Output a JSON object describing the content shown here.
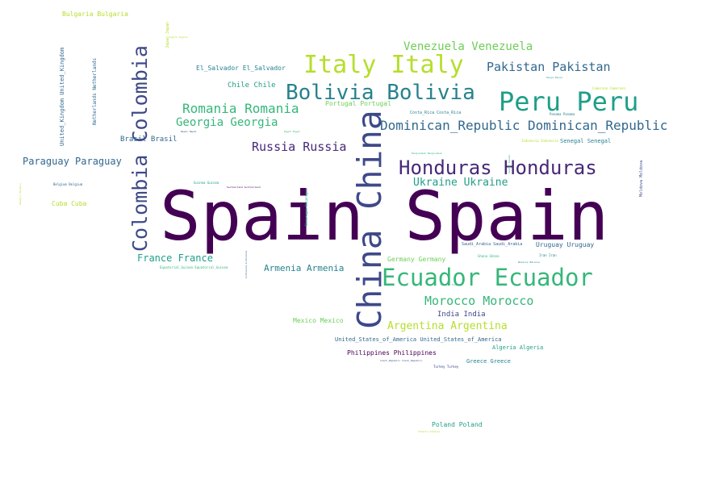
{
  "colors": {
    "background": "#ffffff",
    "dark_purple": "#440154",
    "purple": "#482878",
    "indigo": "#3e4989",
    "blue": "#31688e",
    "teal": "#26828e",
    "green_teal": "#1f9e89",
    "green": "#35b779",
    "light_green": "#6ece58",
    "lime": "#b5de2b",
    "yellow": "#fde725"
  },
  "words": [
    {
      "text": "Spain Spain",
      "color": "#440154"
    },
    {
      "text": "China China",
      "color": "#3e4989"
    },
    {
      "text": "Colombia Colombia",
      "color": "#3e4989"
    },
    {
      "text": "Ecuador Ecuador",
      "color": "#35b779"
    },
    {
      "text": "Italy Italy",
      "color": "#b5de2b"
    },
    {
      "text": "Peru Peru",
      "color": "#1f9e89"
    },
    {
      "text": "Bolivia Bolivia",
      "color": "#26828e"
    },
    {
      "text": "Honduras Honduras",
      "color": "#482878"
    },
    {
      "text": "Dominican_Republic Dominican_Republic",
      "color": "#31688e"
    },
    {
      "text": "Venezuela Venezuela",
      "color": "#6ece58"
    },
    {
      "text": "Pakistan Pakistan",
      "color": "#31688e"
    },
    {
      "text": "Romania Romania",
      "color": "#35b779"
    },
    {
      "text": "Georgia Georgia",
      "color": "#35b779"
    },
    {
      "text": "Russia Russia",
      "color": "#482878"
    },
    {
      "text": "Morocco Morocco",
      "color": "#35b779"
    },
    {
      "text": "Argentina Argentina",
      "color": "#b5de2b"
    },
    {
      "text": "Ukraine Ukraine",
      "color": "#1f9e89"
    },
    {
      "text": "Paraguay Paraguay",
      "color": "#31688e"
    },
    {
      "text": "France France",
      "color": "#1f9e89"
    },
    {
      "text": "Armenia Armenia",
      "color": "#26828e"
    },
    {
      "text": "El_Salvador El_Salvador",
      "color": "#26828e"
    },
    {
      "text": "Chile Chile",
      "color": "#1f9e89"
    },
    {
      "text": "Portugal Portugal",
      "color": "#6ece58"
    },
    {
      "text": "Brasil Brasil",
      "color": "#31688e"
    },
    {
      "text": "Bulgaria Bulgaria",
      "color": "#b5de2b"
    },
    {
      "text": "Cuba Cuba",
      "color": "#b5de2b"
    },
    {
      "text": "Germany Germany",
      "color": "#6ece58"
    },
    {
      "text": "Uruguay Uruguay",
      "color": "#31688e"
    },
    {
      "text": "India India",
      "color": "#3e4989"
    },
    {
      "text": "Mexico Mexico",
      "color": "#6ece58"
    },
    {
      "text": "United_States_of_America United_States_of_America",
      "color": "#31688e"
    },
    {
      "text": "Philippines Philippines",
      "color": "#440154"
    },
    {
      "text": "Algeria Algeria",
      "color": "#1f9e89"
    },
    {
      "text": "Greece Greece",
      "color": "#26828e"
    },
    {
      "text": "Poland Poland",
      "color": "#1f9e89"
    },
    {
      "text": "Senegal Senegal",
      "color": "#26828e"
    },
    {
      "text": "Costa_Rica Costa_Rica",
      "color": "#26828e"
    },
    {
      "text": "Saudi_Arabia Saudi_Arabia",
      "color": "#31688e"
    },
    {
      "text": "United_Kingdom United_Kingdom",
      "color": "#31688e"
    },
    {
      "text": "Netherlands Netherlands",
      "color": "#31688e"
    },
    {
      "text": "Japan Japan",
      "color": "#b5de2b"
    },
    {
      "text": "Moldova Moldova",
      "color": "#3e4989"
    },
    {
      "text": "Nicaragua Nicaragua",
      "color": "#1f9e89"
    },
    {
      "text": "Lithuania Lithuania",
      "color": "#31688e"
    },
    {
      "text": "Hungary Hungary",
      "color": "#b5de2b"
    },
    {
      "text": "Equatorial_Guinea Equatorial_Guinea",
      "color": "#35b779"
    },
    {
      "text": "Belgium Belgium",
      "color": "#31688e"
    },
    {
      "text": "Guinea Guinea",
      "color": "#1f9e89"
    },
    {
      "text": "Switzerland Switzerland",
      "color": "#440154"
    },
    {
      "text": "Nepal Nepal",
      "color": "#31688e"
    },
    {
      "text": "Egypt Egypt",
      "color": "#35b779"
    },
    {
      "text": "Bangladesh Bangladesh",
      "color": "#35b779"
    },
    {
      "text": "Indonesia Indonesia",
      "color": "#b5de2b"
    },
    {
      "text": "Panama Panama",
      "color": "#26828e"
    },
    {
      "text": "Cameroon Cameroon",
      "color": "#b5de2b"
    },
    {
      "text": "Iran Iran",
      "color": "#26828e"
    },
    {
      "text": "Belarus Belarus",
      "color": "#26828e"
    },
    {
      "text": "Czech_Republic Czech_Republic",
      "color": "#3e4989"
    },
    {
      "text": "Turkey Turkey",
      "color": "#3e4989"
    },
    {
      "text": "Ghana Ghana",
      "color": "#35b779"
    },
    {
      "text": "Kenya Kenya",
      "color": "#1f9e89"
    },
    {
      "text": "Sweden Sweden",
      "color": "#35b779"
    },
    {
      "text": "Albania Albania",
      "color": "#b5de2b"
    },
    {
      "text": "Angola Angola",
      "color": "#b5de2b"
    },
    {
      "text": "Tunisia Tunisia",
      "color": "#35b779"
    }
  ]
}
